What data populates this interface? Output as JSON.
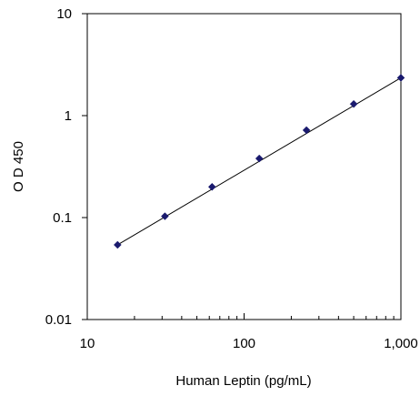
{
  "chart_data": {
    "type": "scatter",
    "title": "",
    "xlabel": "Human Leptin (pg/mL)",
    "ylabel": "O D 450",
    "x_scale": "log",
    "y_scale": "log",
    "xlim": [
      10,
      1000
    ],
    "ylim": [
      0.01,
      10
    ],
    "x_ticks": [
      10,
      100,
      1000
    ],
    "x_tick_labels": [
      "10",
      "100",
      "1,000"
    ],
    "y_ticks": [
      0.01,
      0.1,
      1,
      10
    ],
    "y_tick_labels": [
      "0.01",
      "0.1",
      "1",
      "10"
    ],
    "grid": false,
    "legend": "none",
    "marker": "diamond",
    "colors": {
      "marker": "#1a1a6e",
      "line": "#000000"
    },
    "series": [
      {
        "x": [
          15.6,
          31.25,
          62.5,
          125,
          250,
          500,
          1000
        ],
        "values": [
          0.054,
          0.103,
          0.2,
          0.38,
          0.72,
          1.3,
          2.35
        ]
      }
    ],
    "fit_line": {
      "x": [
        15.6,
        1000
      ],
      "y": [
        0.054,
        2.35
      ]
    }
  }
}
